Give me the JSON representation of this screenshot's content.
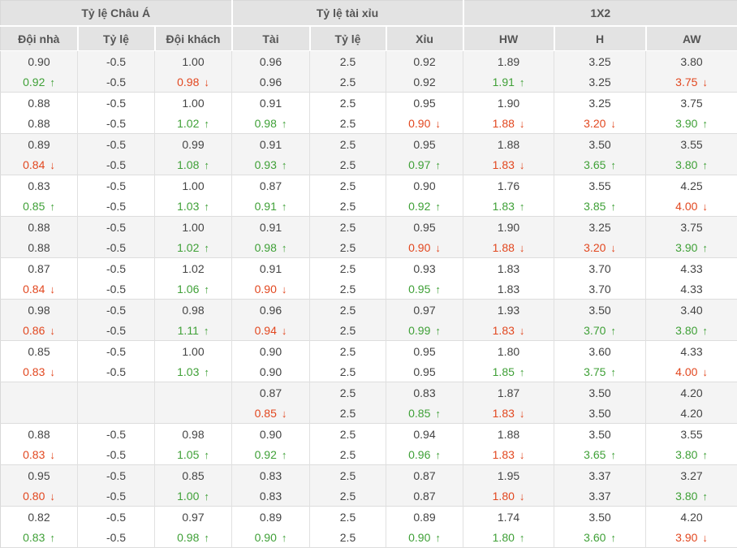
{
  "colors": {
    "up": "#3fa037",
    "down": "#e2471f",
    "header_bg": "#e3e3e3",
    "shade_row_bg": "#f4f4f4",
    "text": "#444444"
  },
  "table": {
    "section_headers": [
      {
        "label": "Tỷ lệ Châu Á"
      },
      {
        "label": "Tỷ lệ tài xỉu"
      },
      {
        "label": "1X2"
      }
    ],
    "column_headers": [
      "Đội nhà",
      "Tỷ lệ",
      "Đội khách",
      "Tài",
      "Tỷ lệ",
      "Xỉu",
      "HW",
      "H",
      "AW"
    ],
    "groups": [
      {
        "rows": [
          [
            [
              "0.90",
              ""
            ],
            [
              "-0.5",
              ""
            ],
            [
              "1.00",
              ""
            ],
            [
              "0.96",
              ""
            ],
            [
              "2.5",
              ""
            ],
            [
              "0.92",
              ""
            ],
            [
              "1.89",
              ""
            ],
            [
              "3.25",
              ""
            ],
            [
              "3.80",
              ""
            ]
          ],
          [
            [
              "0.92",
              "up"
            ],
            [
              "-0.5",
              ""
            ],
            [
              "0.98",
              "down"
            ],
            [
              "0.96",
              ""
            ],
            [
              "2.5",
              ""
            ],
            [
              "0.92",
              ""
            ],
            [
              "1.91",
              "up"
            ],
            [
              "3.25",
              ""
            ],
            [
              "3.75",
              "down"
            ]
          ]
        ]
      },
      {
        "rows": [
          [
            [
              "0.88",
              ""
            ],
            [
              "-0.5",
              ""
            ],
            [
              "1.00",
              ""
            ],
            [
              "0.91",
              ""
            ],
            [
              "2.5",
              ""
            ],
            [
              "0.95",
              ""
            ],
            [
              "1.90",
              ""
            ],
            [
              "3.25",
              ""
            ],
            [
              "3.75",
              ""
            ]
          ],
          [
            [
              "0.88",
              ""
            ],
            [
              "-0.5",
              ""
            ],
            [
              "1.02",
              "up"
            ],
            [
              "0.98",
              "up"
            ],
            [
              "2.5",
              ""
            ],
            [
              "0.90",
              "down"
            ],
            [
              "1.88",
              "down"
            ],
            [
              "3.20",
              "down"
            ],
            [
              "3.90",
              "up"
            ]
          ]
        ]
      },
      {
        "rows": [
          [
            [
              "0.89",
              ""
            ],
            [
              "-0.5",
              ""
            ],
            [
              "0.99",
              ""
            ],
            [
              "0.91",
              ""
            ],
            [
              "2.5",
              ""
            ],
            [
              "0.95",
              ""
            ],
            [
              "1.88",
              ""
            ],
            [
              "3.50",
              ""
            ],
            [
              "3.55",
              ""
            ]
          ],
          [
            [
              "0.84",
              "down"
            ],
            [
              "-0.5",
              ""
            ],
            [
              "1.08",
              "up"
            ],
            [
              "0.93",
              "up"
            ],
            [
              "2.5",
              ""
            ],
            [
              "0.97",
              "up"
            ],
            [
              "1.83",
              "down"
            ],
            [
              "3.65",
              "up"
            ],
            [
              "3.80",
              "up"
            ]
          ]
        ]
      },
      {
        "rows": [
          [
            [
              "0.83",
              ""
            ],
            [
              "-0.5",
              ""
            ],
            [
              "1.00",
              ""
            ],
            [
              "0.87",
              ""
            ],
            [
              "2.5",
              ""
            ],
            [
              "0.90",
              ""
            ],
            [
              "1.76",
              ""
            ],
            [
              "3.55",
              ""
            ],
            [
              "4.25",
              ""
            ]
          ],
          [
            [
              "0.85",
              "up"
            ],
            [
              "-0.5",
              ""
            ],
            [
              "1.03",
              "up"
            ],
            [
              "0.91",
              "up"
            ],
            [
              "2.5",
              ""
            ],
            [
              "0.92",
              "up"
            ],
            [
              "1.83",
              "up"
            ],
            [
              "3.85",
              "up"
            ],
            [
              "4.00",
              "down"
            ]
          ]
        ]
      },
      {
        "rows": [
          [
            [
              "0.88",
              ""
            ],
            [
              "-0.5",
              ""
            ],
            [
              "1.00",
              ""
            ],
            [
              "0.91",
              ""
            ],
            [
              "2.5",
              ""
            ],
            [
              "0.95",
              ""
            ],
            [
              "1.90",
              ""
            ],
            [
              "3.25",
              ""
            ],
            [
              "3.75",
              ""
            ]
          ],
          [
            [
              "0.88",
              ""
            ],
            [
              "-0.5",
              ""
            ],
            [
              "1.02",
              "up"
            ],
            [
              "0.98",
              "up"
            ],
            [
              "2.5",
              ""
            ],
            [
              "0.90",
              "down"
            ],
            [
              "1.88",
              "down"
            ],
            [
              "3.20",
              "down"
            ],
            [
              "3.90",
              "up"
            ]
          ]
        ]
      },
      {
        "rows": [
          [
            [
              "0.87",
              ""
            ],
            [
              "-0.5",
              ""
            ],
            [
              "1.02",
              ""
            ],
            [
              "0.91",
              ""
            ],
            [
              "2.5",
              ""
            ],
            [
              "0.93",
              ""
            ],
            [
              "1.83",
              ""
            ],
            [
              "3.70",
              ""
            ],
            [
              "4.33",
              ""
            ]
          ],
          [
            [
              "0.84",
              "down"
            ],
            [
              "-0.5",
              ""
            ],
            [
              "1.06",
              "up"
            ],
            [
              "0.90",
              "down"
            ],
            [
              "2.5",
              ""
            ],
            [
              "0.95",
              "up"
            ],
            [
              "1.83",
              ""
            ],
            [
              "3.70",
              ""
            ],
            [
              "4.33",
              ""
            ]
          ]
        ]
      },
      {
        "rows": [
          [
            [
              "0.98",
              ""
            ],
            [
              "-0.5",
              ""
            ],
            [
              "0.98",
              ""
            ],
            [
              "0.96",
              ""
            ],
            [
              "2.5",
              ""
            ],
            [
              "0.97",
              ""
            ],
            [
              "1.93",
              ""
            ],
            [
              "3.50",
              ""
            ],
            [
              "3.40",
              ""
            ]
          ],
          [
            [
              "0.86",
              "down"
            ],
            [
              "-0.5",
              ""
            ],
            [
              "1.11",
              "up"
            ],
            [
              "0.94",
              "down"
            ],
            [
              "2.5",
              ""
            ],
            [
              "0.99",
              "up"
            ],
            [
              "1.83",
              "down"
            ],
            [
              "3.70",
              "up"
            ],
            [
              "3.80",
              "up"
            ]
          ]
        ]
      },
      {
        "rows": [
          [
            [
              "0.85",
              ""
            ],
            [
              "-0.5",
              ""
            ],
            [
              "1.00",
              ""
            ],
            [
              "0.90",
              ""
            ],
            [
              "2.5",
              ""
            ],
            [
              "0.95",
              ""
            ],
            [
              "1.80",
              ""
            ],
            [
              "3.60",
              ""
            ],
            [
              "4.33",
              ""
            ]
          ],
          [
            [
              "0.83",
              "down"
            ],
            [
              "-0.5",
              ""
            ],
            [
              "1.03",
              "up"
            ],
            [
              "0.90",
              ""
            ],
            [
              "2.5",
              ""
            ],
            [
              "0.95",
              ""
            ],
            [
              "1.85",
              "up"
            ],
            [
              "3.75",
              "up"
            ],
            [
              "4.00",
              "down"
            ]
          ]
        ]
      },
      {
        "rows": [
          [
            [
              "",
              ""
            ],
            [
              "",
              ""
            ],
            [
              "",
              ""
            ],
            [
              "0.87",
              ""
            ],
            [
              "2.5",
              ""
            ],
            [
              "0.83",
              ""
            ],
            [
              "1.87",
              ""
            ],
            [
              "3.50",
              ""
            ],
            [
              "4.20",
              ""
            ]
          ],
          [
            [
              "",
              ""
            ],
            [
              "",
              ""
            ],
            [
              "",
              ""
            ],
            [
              "0.85",
              "down"
            ],
            [
              "2.5",
              ""
            ],
            [
              "0.85",
              "up"
            ],
            [
              "1.83",
              "down"
            ],
            [
              "3.50",
              ""
            ],
            [
              "4.20",
              ""
            ]
          ]
        ]
      },
      {
        "rows": [
          [
            [
              "0.88",
              ""
            ],
            [
              "-0.5",
              ""
            ],
            [
              "0.98",
              ""
            ],
            [
              "0.90",
              ""
            ],
            [
              "2.5",
              ""
            ],
            [
              "0.94",
              ""
            ],
            [
              "1.88",
              ""
            ],
            [
              "3.50",
              ""
            ],
            [
              "3.55",
              ""
            ]
          ],
          [
            [
              "0.83",
              "down"
            ],
            [
              "-0.5",
              ""
            ],
            [
              "1.05",
              "up"
            ],
            [
              "0.92",
              "up"
            ],
            [
              "2.5",
              ""
            ],
            [
              "0.96",
              "up"
            ],
            [
              "1.83",
              "down"
            ],
            [
              "3.65",
              "up"
            ],
            [
              "3.80",
              "up"
            ]
          ]
        ]
      },
      {
        "rows": [
          [
            [
              "0.95",
              ""
            ],
            [
              "-0.5",
              ""
            ],
            [
              "0.85",
              ""
            ],
            [
              "0.83",
              ""
            ],
            [
              "2.5",
              ""
            ],
            [
              "0.87",
              ""
            ],
            [
              "1.95",
              ""
            ],
            [
              "3.37",
              ""
            ],
            [
              "3.27",
              ""
            ]
          ],
          [
            [
              "0.80",
              "down"
            ],
            [
              "-0.5",
              ""
            ],
            [
              "1.00",
              "up"
            ],
            [
              "0.83",
              ""
            ],
            [
              "2.5",
              ""
            ],
            [
              "0.87",
              ""
            ],
            [
              "1.80",
              "down"
            ],
            [
              "3.37",
              ""
            ],
            [
              "3.80",
              "up"
            ]
          ]
        ]
      },
      {
        "rows": [
          [
            [
              "0.82",
              ""
            ],
            [
              "-0.5",
              ""
            ],
            [
              "0.97",
              ""
            ],
            [
              "0.89",
              ""
            ],
            [
              "2.5",
              ""
            ],
            [
              "0.89",
              ""
            ],
            [
              "1.74",
              ""
            ],
            [
              "3.50",
              ""
            ],
            [
              "4.20",
              ""
            ]
          ],
          [
            [
              "0.83",
              "up"
            ],
            [
              "-0.5",
              ""
            ],
            [
              "0.98",
              "up"
            ],
            [
              "0.90",
              "up"
            ],
            [
              "2.5",
              ""
            ],
            [
              "0.90",
              "up"
            ],
            [
              "1.80",
              "up"
            ],
            [
              "3.60",
              "up"
            ],
            [
              "3.90",
              "down"
            ]
          ]
        ]
      }
    ]
  }
}
